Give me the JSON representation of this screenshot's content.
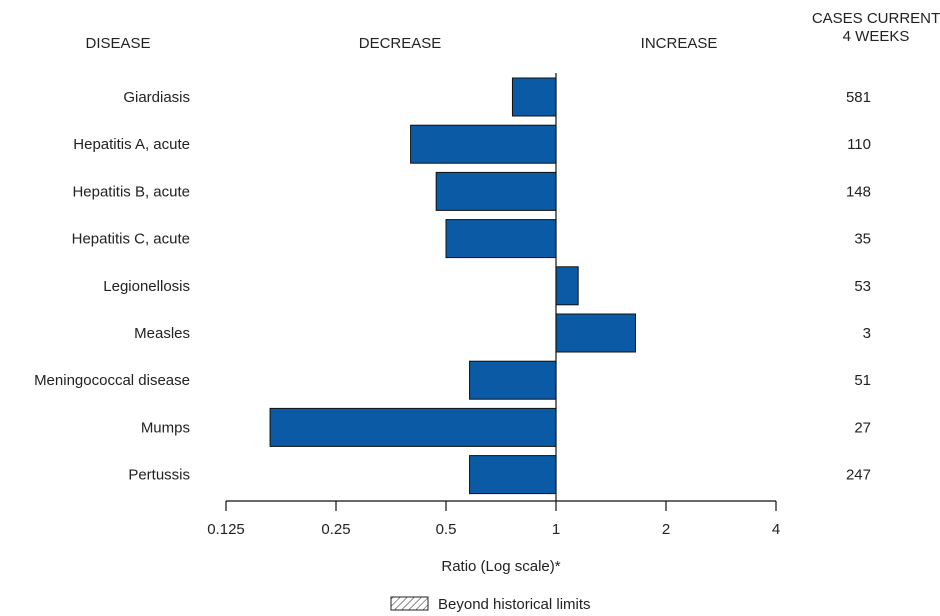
{
  "chart_data": {
    "type": "bar",
    "orientation": "horizontal",
    "scale": "log2",
    "baseline": 1,
    "headers": {
      "disease": "DISEASE",
      "decrease": "DECREASE",
      "increase": "INCREASE",
      "cases_line1": "CASES CURRENT",
      "cases_line2": "4 WEEKS"
    },
    "categories": [
      "Giardiasis",
      "Hepatitis A, acute",
      "Hepatitis B, acute",
      "Hepatitis C, acute",
      "Legionellosis",
      "Measles",
      "Meningococcal disease",
      "Mumps",
      "Pertussis"
    ],
    "values": [
      0.76,
      0.4,
      0.47,
      0.5,
      1.15,
      1.65,
      0.58,
      0.165,
      0.58
    ],
    "cases": [
      "581",
      "110",
      "148",
      "35",
      "53",
      "3",
      "51",
      "27",
      "247"
    ],
    "xlim": [
      0.125,
      4
    ],
    "ticks": [
      0.125,
      0.25,
      0.5,
      1,
      2,
      4
    ],
    "tick_labels": [
      "0.125",
      "0.25",
      "0.5",
      "1",
      "2",
      "4"
    ],
    "xlabel": "Ratio (Log scale)*",
    "legend": "Beyond historical limits",
    "colors": {
      "bar": "#0a5aa5"
    }
  }
}
